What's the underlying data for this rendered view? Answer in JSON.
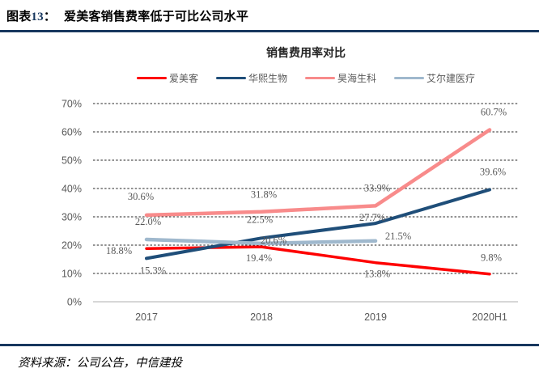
{
  "header": {
    "prefix": "图表",
    "number": "13",
    "colon": "：",
    "title": "爱美客销售费率低于可比公司水平"
  },
  "chart_data": {
    "type": "line",
    "title": "销售费用率对比",
    "categories": [
      "2017",
      "2018",
      "2019",
      "2020H1"
    ],
    "series": [
      {
        "name": "爱美客",
        "color": "#FE0000",
        "values": [
          18.8,
          19.4,
          13.8,
          9.8
        ],
        "labels": [
          "18.8%",
          "19.4%",
          "13.8%",
          "9.8%"
        ]
      },
      {
        "name": "华熙生物",
        "color": "#1F4E79",
        "values": [
          15.3,
          22.5,
          27.7,
          39.6
        ],
        "labels": [
          "15.3%",
          "22.5%",
          "27.7%",
          "39.6%"
        ]
      },
      {
        "name": "昊海生科",
        "color": "#F88B8B",
        "values": [
          30.6,
          31.8,
          33.9,
          60.7
        ],
        "labels": [
          "30.6%",
          "31.8%",
          "33.9%",
          "60.7%"
        ]
      },
      {
        "name": "艾尔建医疗",
        "color": "#9FB8CD",
        "values": [
          22.0,
          20.6,
          21.5,
          null
        ],
        "labels": [
          "22.0%",
          "20.6%",
          "21.5%",
          null
        ]
      }
    ],
    "ylim": [
      0,
      70
    ],
    "ytick_step": 10,
    "yticks": [
      "0%",
      "10%",
      "20%",
      "30%",
      "40%",
      "50%",
      "60%",
      "70%"
    ],
    "grid": "horizontal-dashed",
    "legend_position": "top"
  },
  "footer": {
    "source": "资料来源：公司公告，中信建投"
  },
  "colors": {
    "accent_rule": "#17375E",
    "grid_line": "#262626",
    "axis_line": "#BFBFBF",
    "tick_label": "#595959",
    "data_label": "#595959"
  }
}
